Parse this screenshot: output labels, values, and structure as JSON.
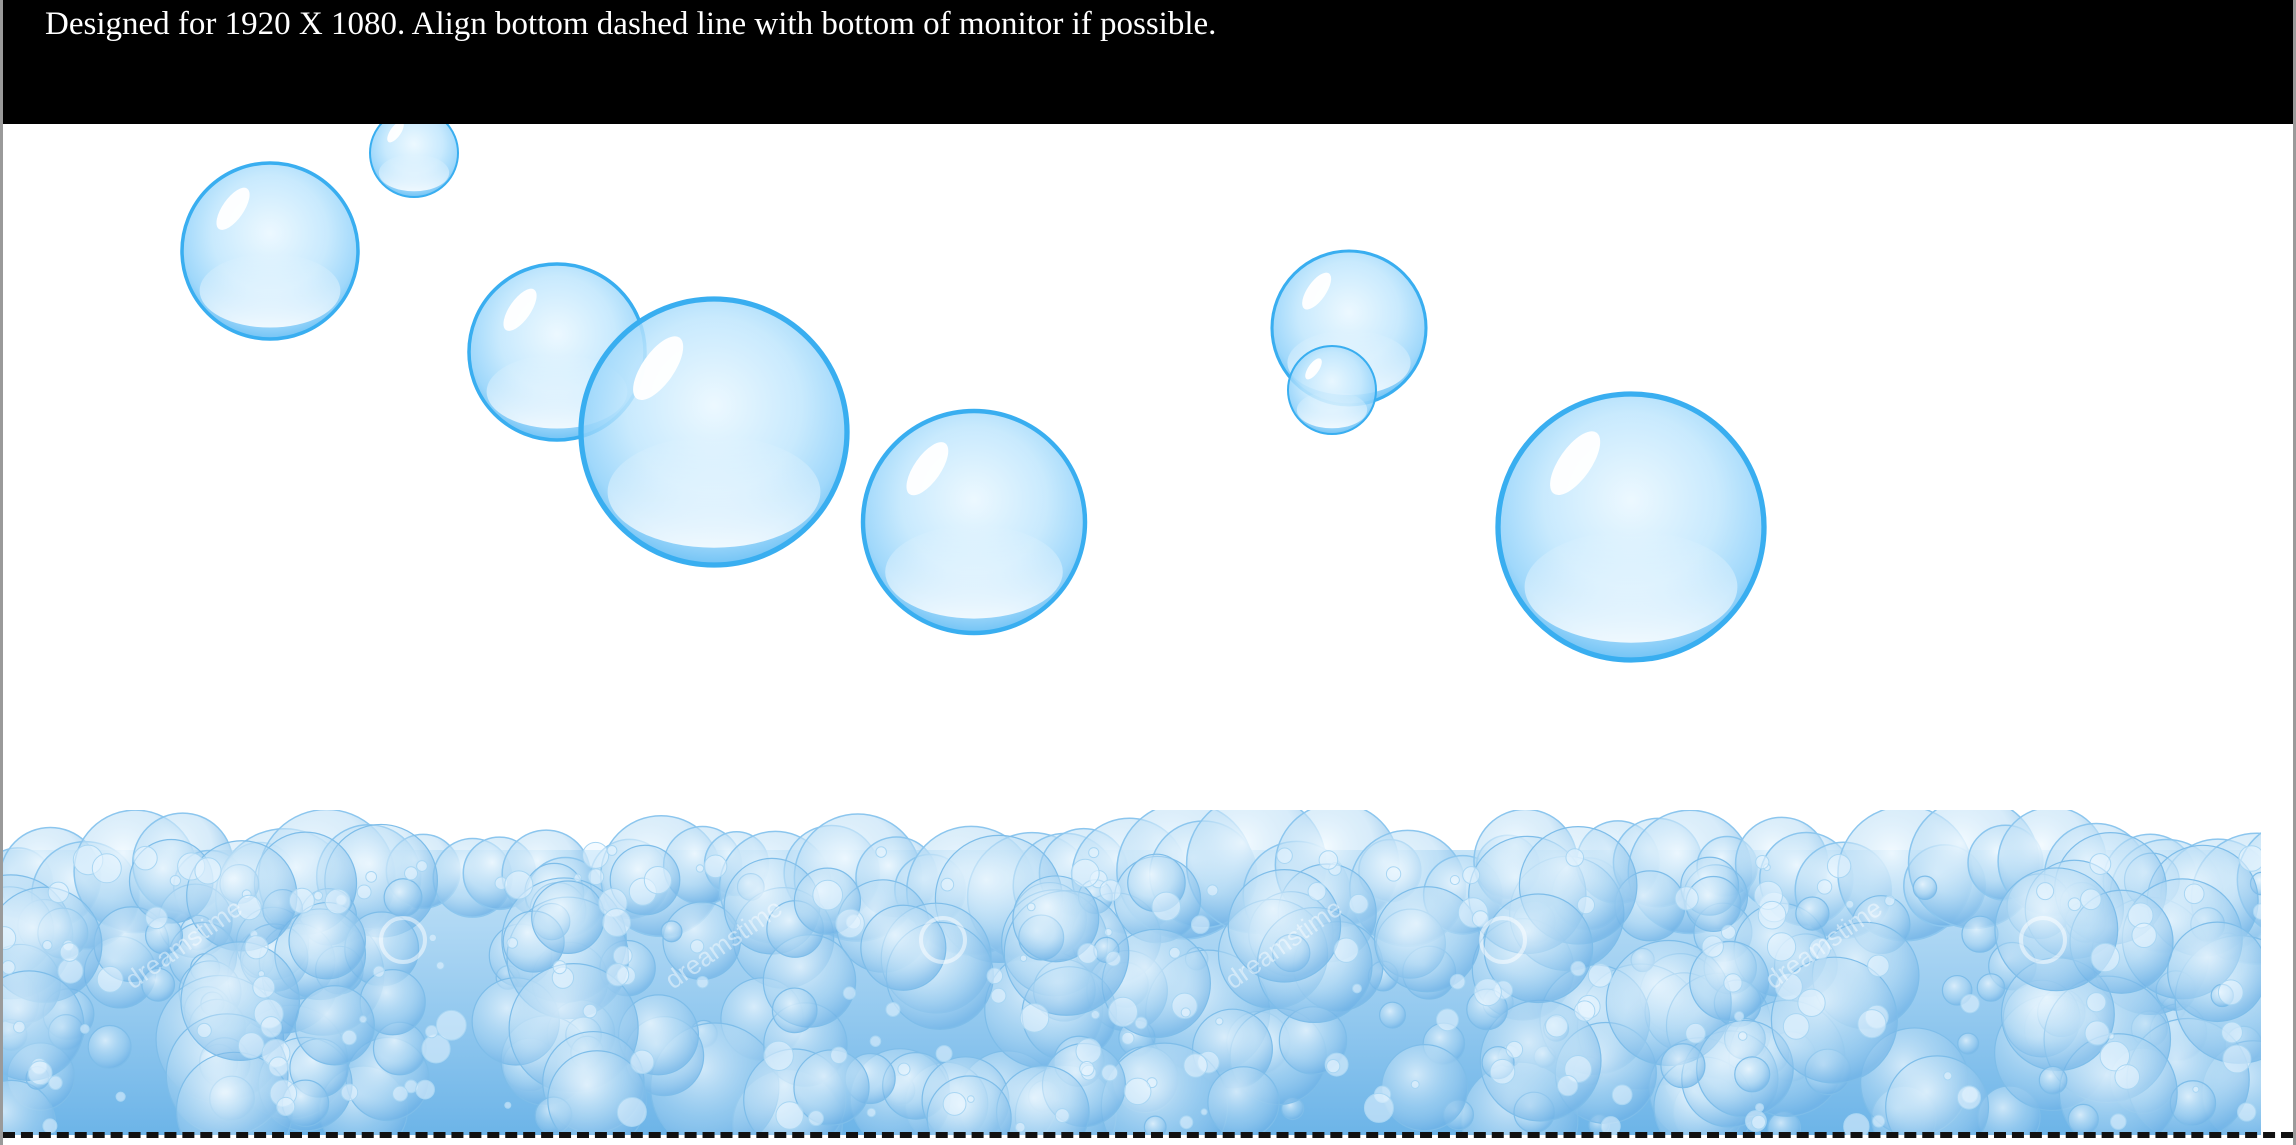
{
  "header": {
    "notice": "Designed for 1920 X 1080. Align bottom dashed line with bottom of monitor if possible."
  },
  "colors": {
    "header_bg": "#000000",
    "header_text": "#ffffff",
    "bubble_rim": "#3ab0f0",
    "foam_light": "#d8eefb",
    "foam_mid": "#9dcdf0",
    "foam_dark": "#5aa7e3"
  },
  "foam": {
    "watermark": "dreamstime"
  }
}
